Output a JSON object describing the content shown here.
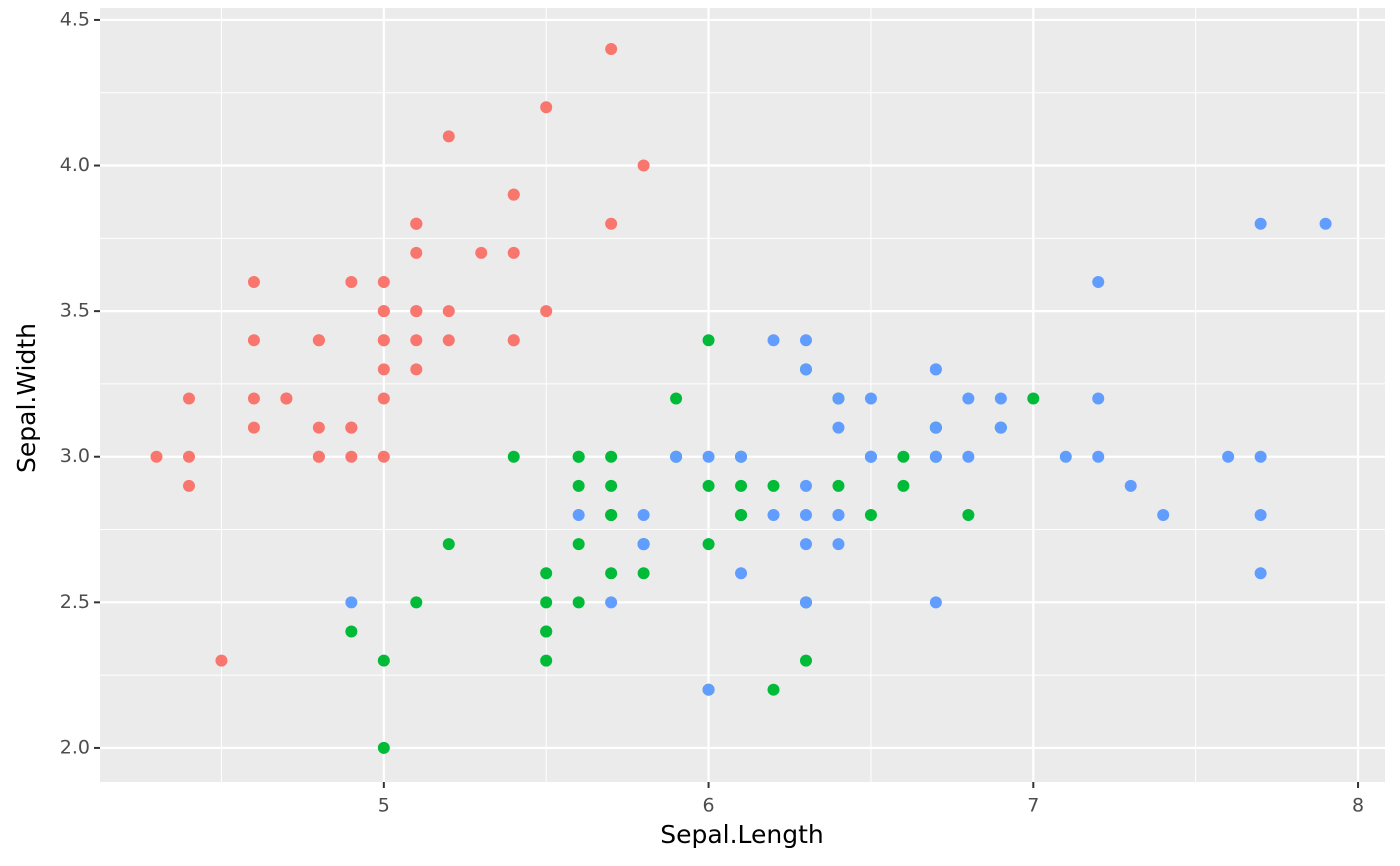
{
  "chart_data": {
    "type": "scatter",
    "x_label": "Sepal.Length",
    "y_label": "Sepal.Width",
    "xlim": [
      4.126,
      8.083
    ],
    "ylim": [
      1.883,
      4.541
    ],
    "xticks": [
      5,
      6,
      7,
      8
    ],
    "yticks": [
      {
        "value": 2,
        "label": "2.0"
      },
      {
        "value": 2.5,
        "label": "2.5"
      },
      {
        "value": 3,
        "label": "3.0"
      },
      {
        "value": 3.5,
        "label": "3.5"
      },
      {
        "value": 4,
        "label": "4.0"
      },
      {
        "value": 4.5,
        "label": "4.5"
      }
    ],
    "grid": true,
    "series": [
      {
        "color": "#F8766D",
        "x": [
          5.1,
          4.9,
          4.7,
          4.6,
          5.0,
          5.4,
          4.6,
          5.0,
          4.4,
          4.9,
          5.4,
          4.8,
          4.8,
          4.3,
          5.8,
          5.7,
          5.4,
          5.1,
          5.7,
          5.1,
          5.4,
          5.1,
          4.6,
          5.1,
          4.8,
          5.0,
          5.0,
          5.2,
          5.2,
          4.7,
          4.8,
          5.4,
          5.2,
          5.5,
          4.9,
          5.0,
          5.5,
          4.9,
          4.4,
          5.1,
          5.0,
          4.5,
          4.4,
          5.0,
          5.1,
          4.8,
          5.1,
          4.6,
          5.3,
          5.0
        ],
        "y": [
          3.5,
          3.0,
          3.2,
          3.1,
          3.6,
          3.9,
          3.4,
          3.4,
          2.9,
          3.1,
          3.7,
          3.4,
          3.0,
          3.0,
          4.0,
          4.4,
          3.9,
          3.5,
          3.8,
          3.8,
          3.4,
          3.7,
          3.6,
          3.3,
          3.4,
          3.0,
          3.4,
          3.5,
          3.4,
          3.2,
          3.1,
          3.4,
          4.1,
          4.2,
          3.1,
          3.2,
          3.5,
          3.6,
          3.0,
          3.4,
          3.5,
          2.3,
          3.2,
          3.5,
          3.8,
          3.0,
          3.8,
          3.2,
          3.7,
          3.3
        ]
      },
      {
        "color": "#00BA38",
        "x": [
          7.0,
          6.4,
          6.9,
          5.5,
          6.5,
          5.7,
          6.3,
          4.9,
          6.6,
          5.2,
          5.0,
          5.9,
          6.0,
          6.1,
          5.6,
          6.7,
          5.6,
          5.8,
          6.2,
          5.6,
          5.9,
          6.1,
          6.3,
          6.1,
          6.4,
          6.6,
          6.8,
          6.7,
          6.0,
          5.7,
          5.5,
          5.5,
          5.8,
          6.0,
          5.4,
          6.0,
          6.7,
          6.3,
          5.6,
          5.5,
          5.5,
          6.1,
          5.8,
          5.0,
          5.6,
          5.7,
          5.7,
          6.2,
          5.1,
          5.7
        ],
        "y": [
          3.2,
          3.2,
          3.1,
          2.3,
          2.8,
          2.8,
          3.3,
          2.4,
          2.9,
          2.7,
          2.0,
          3.0,
          2.2,
          2.9,
          2.9,
          3.1,
          3.0,
          2.7,
          2.2,
          2.5,
          3.2,
          2.8,
          2.5,
          2.8,
          2.9,
          3.0,
          2.8,
          3.0,
          2.9,
          2.6,
          2.4,
          2.4,
          2.7,
          2.7,
          3.0,
          3.4,
          3.1,
          2.3,
          3.0,
          2.5,
          2.6,
          3.0,
          2.6,
          2.3,
          2.7,
          3.0,
          2.9,
          2.9,
          2.5,
          2.8
        ]
      },
      {
        "color": "#619CFF",
        "x": [
          6.3,
          5.8,
          7.1,
          6.3,
          6.5,
          7.6,
          4.9,
          7.3,
          6.7,
          7.2,
          6.5,
          6.4,
          6.8,
          5.7,
          5.8,
          6.4,
          6.5,
          7.7,
          7.7,
          6.0,
          6.9,
          5.6,
          7.7,
          6.3,
          6.7,
          7.2,
          6.2,
          6.1,
          6.4,
          7.2,
          7.4,
          7.9,
          6.4,
          6.3,
          6.1,
          7.7,
          6.3,
          6.4,
          6.0,
          6.9,
          6.7,
          6.9,
          5.8,
          6.8,
          6.7,
          6.7,
          6.3,
          6.5,
          6.2,
          5.9
        ],
        "y": [
          3.3,
          2.7,
          3.0,
          2.9,
          3.0,
          3.0,
          2.5,
          2.9,
          2.5,
          3.6,
          3.2,
          2.7,
          3.0,
          2.5,
          2.8,
          3.2,
          3.0,
          3.8,
          2.6,
          2.2,
          3.2,
          2.8,
          2.8,
          2.7,
          3.3,
          3.2,
          2.8,
          3.0,
          2.8,
          3.0,
          2.8,
          3.8,
          2.8,
          2.8,
          2.6,
          3.0,
          3.4,
          3.1,
          3.0,
          3.1,
          3.1,
          3.1,
          2.7,
          3.2,
          3.3,
          3.0,
          2.5,
          3.0,
          3.4,
          3.0
        ]
      }
    ]
  }
}
